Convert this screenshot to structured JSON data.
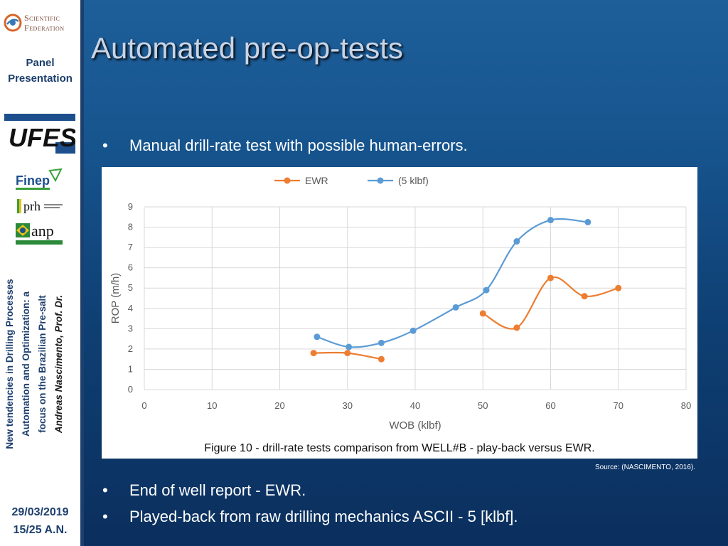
{
  "sidebar": {
    "brand_line1": "Scientific",
    "brand_line2": "Federation",
    "panel_label_line1": "Panel",
    "panel_label_line2": "Presentation",
    "logos": [
      "ufes-logo",
      "finep-logo",
      "prh-logo",
      "anp-logo"
    ],
    "logo_text": {
      "ufes": "UFES",
      "finep": "Finep",
      "prh": "prh",
      "anp": "anp"
    },
    "vertical_title_line1": "New tendencies in Drilling Processes",
    "vertical_title_line2": "Automation and Optimization: a",
    "vertical_title_line3": "focus on the Brazilian Pre-salt",
    "vertical_title_author": "Andreas Nascimento, Prof. Dr.",
    "date": "29/03/2019",
    "page": "15/25  A.N."
  },
  "slide": {
    "title": "Automated pre-op-tests",
    "bullet1": "Manual drill-rate test with possible human-errors.",
    "bullet2": "End of well report - EWR.",
    "bullet3": "Played-back from raw drilling mechanics ASCII - 5 [klbf].",
    "bullet_symbol": "•",
    "source": "Source: (NASCIMENTO, 2016)."
  },
  "colors": {
    "ewr": "#ed7d31",
    "klbf": "#5b9bd5",
    "title": "#c8d4e6",
    "sidebar_text": "#1d3f6e"
  },
  "chart_data": {
    "type": "line",
    "caption": "Figure 10 - drill-rate tests comparison from WELL#B - play-back versus EWR.",
    "xlabel": "WOB (klbf)",
    "ylabel": "ROP (m/h)",
    "xlim": [
      0,
      80
    ],
    "ylim": [
      0,
      9
    ],
    "xticks": [
      0,
      10,
      20,
      30,
      40,
      50,
      60,
      70,
      80
    ],
    "yticks": [
      0,
      1,
      2,
      3,
      4,
      5,
      6,
      7,
      8,
      9
    ],
    "grid": true,
    "legend_position": "top",
    "series": [
      {
        "name": "EWR",
        "color": "#ed7d31",
        "segments": [
          [
            [
              25,
              1.8
            ],
            [
              30,
              1.8
            ],
            [
              35,
              1.5
            ]
          ],
          [
            [
              50,
              3.75
            ],
            [
              55,
              3.05
            ],
            [
              60,
              5.5
            ],
            [
              65,
              4.6
            ],
            [
              70,
              5.0
            ]
          ]
        ]
      },
      {
        "name": "(5 klbf)",
        "color": "#5b9bd5",
        "segments": [
          [
            [
              25.5,
              2.6
            ],
            [
              30.2,
              2.1
            ],
            [
              35,
              2.3
            ],
            [
              39.7,
              2.9
            ],
            [
              46,
              4.05
            ],
            [
              50.5,
              4.9
            ],
            [
              55,
              7.3
            ],
            [
              60,
              8.35
            ],
            [
              65.5,
              8.25
            ]
          ]
        ]
      }
    ]
  }
}
